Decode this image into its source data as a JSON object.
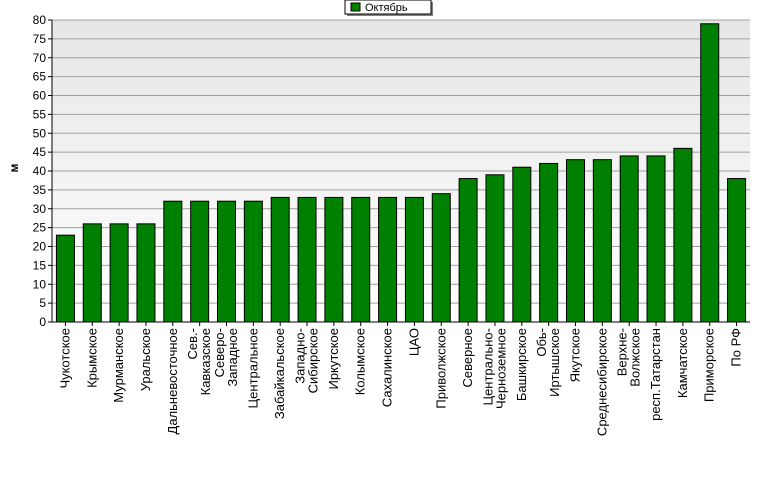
{
  "chart_data": {
    "type": "bar",
    "y_label": "м",
    "categories": [
      "Чукотское",
      "Крымское",
      "Мурманское",
      "Уральское",
      "Дальневосточное",
      "Сев.-\nКавказское",
      "Северо-\nЗападное",
      "Центральное",
      "Забайкальское",
      "Западно-\nСибирское",
      "Иркутское",
      "Колымское",
      "Сахалинское",
      "ЦАО",
      "Приволжское",
      "Северное",
      "Центрально-\nЧерноземное",
      "Башкирское",
      "Обь-\nИртышское",
      "Якутское",
      "Среднесибирское",
      "Верхне-\nВолжское",
      "респ.Татарстан",
      "Камчатское",
      "Приморское",
      "По РФ"
    ],
    "series": [
      {
        "name": "Октябрь",
        "color": "#008000",
        "values": [
          23,
          26,
          26,
          26,
          32,
          32,
          32,
          32,
          33,
          33,
          33,
          33,
          33,
          33,
          34,
          38,
          39,
          41,
          42,
          43,
          43,
          44,
          44,
          46,
          79,
          38
        ]
      }
    ],
    "ylim": [
      0,
      80
    ],
    "yticks": [
      0,
      5,
      10,
      15,
      20,
      25,
      30,
      35,
      40,
      45,
      50,
      55,
      60,
      65,
      70,
      75,
      80
    ],
    "grid": true,
    "legend": "top"
  }
}
